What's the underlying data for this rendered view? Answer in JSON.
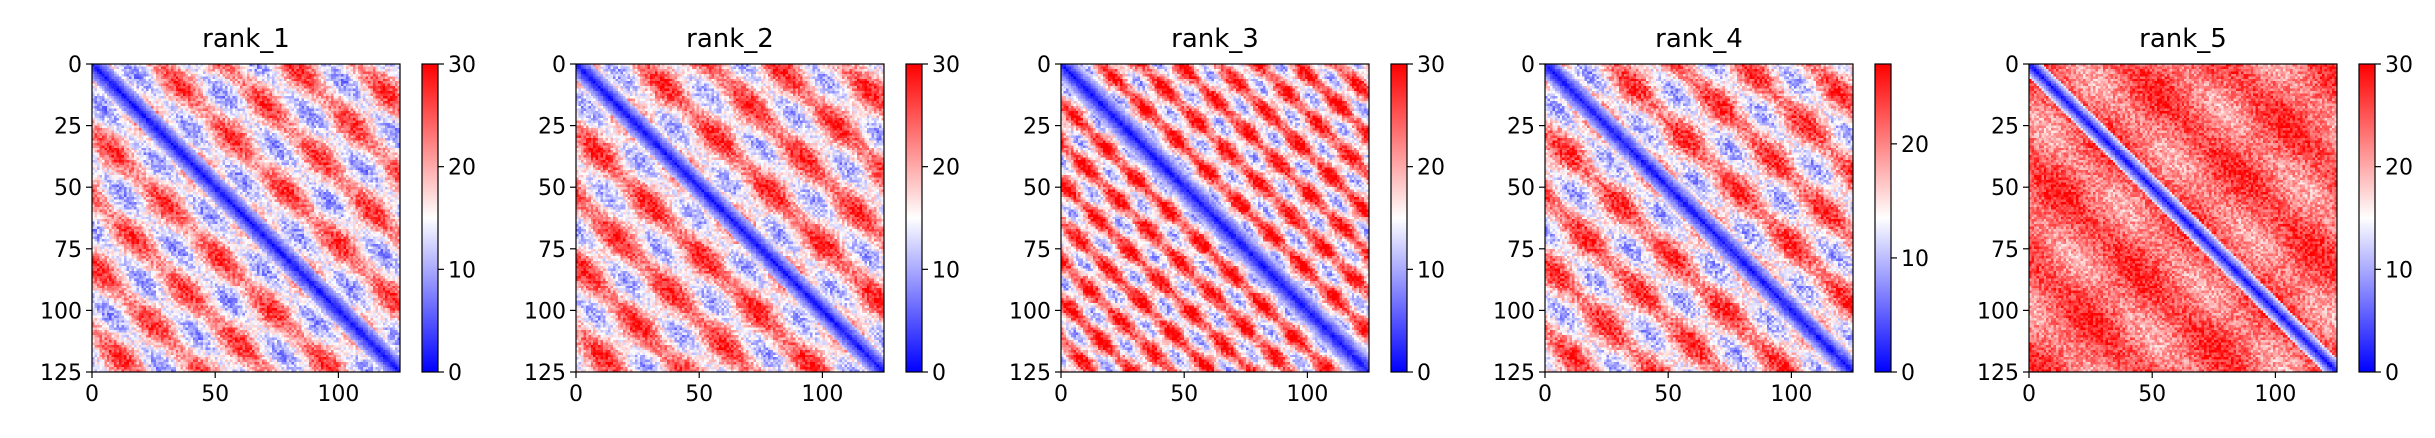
{
  "chart_data": [
    {
      "type": "heatmap",
      "title": "rank_1",
      "xticks": [
        0,
        50,
        100
      ],
      "yticks": [
        0,
        25,
        50,
        75,
        100,
        125
      ],
      "xlim": [
        0,
        125
      ],
      "ylim": [
        125,
        0
      ],
      "colorbar": {
        "ticks": [
          0,
          10,
          20,
          30
        ],
        "range": [
          0,
          30
        ],
        "colormap": "bwr"
      },
      "pattern": {
        "diagonal_value": 1,
        "diagonal_width": 7,
        "background": 18,
        "stripe_period": 27,
        "stripe_amplitude": 9,
        "noise": 4
      }
    },
    {
      "type": "heatmap",
      "title": "rank_2",
      "xticks": [
        0,
        50,
        100
      ],
      "yticks": [
        0,
        25,
        50,
        75,
        100,
        125
      ],
      "xlim": [
        0,
        125
      ],
      "ylim": [
        125,
        0
      ],
      "colorbar": {
        "ticks": [
          0,
          10,
          20,
          30
        ],
        "range": [
          0,
          30
        ],
        "colormap": "bwr"
      },
      "pattern": {
        "diagonal_value": 1,
        "diagonal_width": 7,
        "background": 19,
        "stripe_period": 27,
        "stripe_amplitude": 9,
        "noise": 4
      }
    },
    {
      "type": "heatmap",
      "title": "rank_3",
      "xticks": [
        0,
        50,
        100
      ],
      "yticks": [
        0,
        25,
        50,
        75,
        100,
        125
      ],
      "xlim": [
        0,
        125
      ],
      "ylim": [
        125,
        0
      ],
      "colorbar": {
        "ticks": [
          0,
          10,
          20,
          30
        ],
        "range": [
          0,
          30
        ],
        "colormap": "bwr"
      },
      "pattern": {
        "diagonal_value": 1,
        "diagonal_width": 8,
        "background": 20,
        "stripe_period": 16,
        "stripe_amplitude": 10,
        "noise": 4
      }
    },
    {
      "type": "heatmap",
      "title": "rank_4",
      "xticks": [
        0,
        50,
        100
      ],
      "yticks": [
        0,
        25,
        50,
        75,
        100,
        125
      ],
      "xlim": [
        0,
        125
      ],
      "ylim": [
        125,
        0
      ],
      "colorbar": {
        "ticks": [
          0,
          10,
          20
        ],
        "range": [
          0,
          27
        ],
        "colormap": "bwr"
      },
      "pattern": {
        "diagonal_value": 1,
        "diagonal_width": 7,
        "background": 17,
        "stripe_period": 27,
        "stripe_amplitude": 8,
        "noise": 4
      }
    },
    {
      "type": "heatmap",
      "title": "rank_5",
      "xticks": [
        0,
        50,
        100
      ],
      "yticks": [
        0,
        25,
        50,
        75,
        100,
        125
      ],
      "xlim": [
        0,
        125
      ],
      "ylim": [
        125,
        0
      ],
      "colorbar": {
        "ticks": [
          0,
          10,
          20,
          30
        ],
        "range": [
          0,
          30
        ],
        "colormap": "bwr"
      },
      "pattern": {
        "diagonal_value": 1,
        "diagonal_width": 6,
        "background": 24,
        "stripe_period": 40,
        "stripe_amplitude": 4,
        "noise": 4
      }
    }
  ],
  "colors": {
    "low": "#0000ff",
    "mid": "#ffffff",
    "high": "#ff0000"
  }
}
